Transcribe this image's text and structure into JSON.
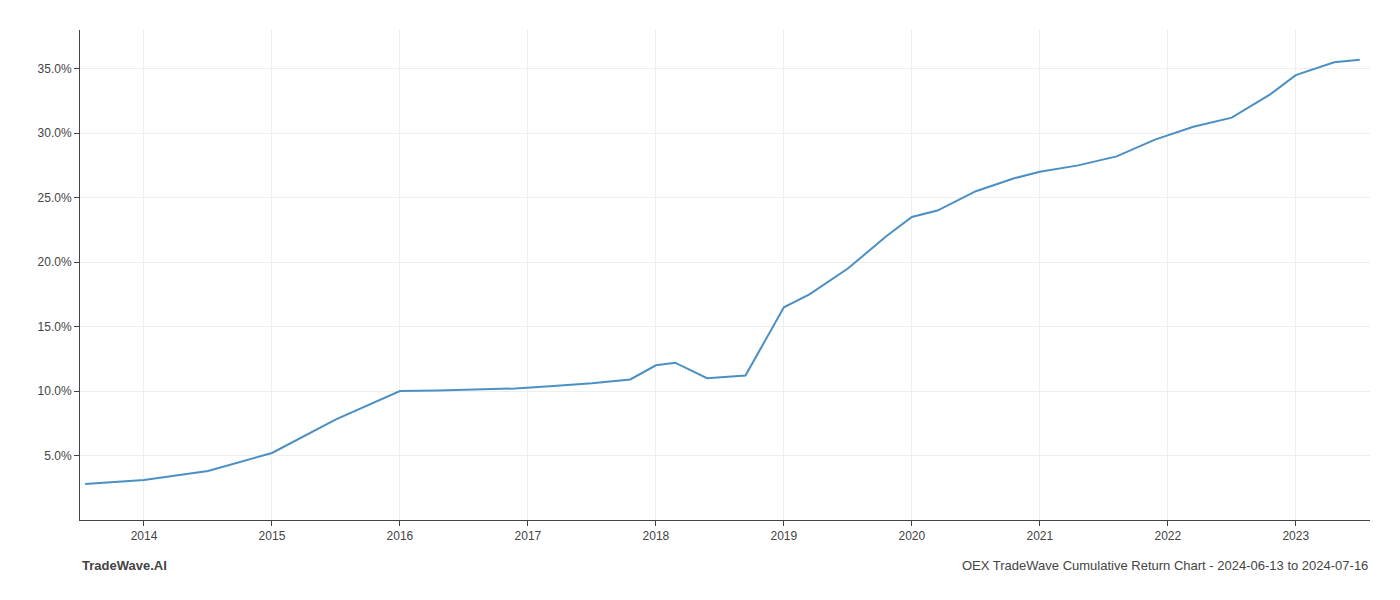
{
  "chart_data": {
    "type": "line",
    "x": [
      2013.54,
      2014.0,
      2014.5,
      2015.0,
      2015.5,
      2016.0,
      2016.3,
      2016.6,
      2016.9,
      2017.2,
      2017.5,
      2017.8,
      2018.0,
      2018.15,
      2018.4,
      2018.7,
      2019.0,
      2019.2,
      2019.5,
      2019.8,
      2020.0,
      2020.2,
      2020.5,
      2020.8,
      2021.0,
      2021.3,
      2021.6,
      2021.9,
      2022.2,
      2022.5,
      2022.8,
      2023.0,
      2023.3,
      2023.5
    ],
    "values": [
      2.8,
      3.1,
      3.8,
      5.2,
      7.8,
      10.0,
      10.05,
      10.1,
      10.2,
      10.4,
      10.6,
      10.9,
      12.0,
      12.2,
      11.0,
      11.2,
      16.5,
      17.5,
      19.5,
      22.0,
      23.5,
      24.0,
      25.5,
      26.5,
      27.0,
      27.5,
      28.2,
      29.5,
      30.5,
      31.2,
      33.0,
      34.5,
      35.5,
      35.7
    ],
    "color": "#4a90c4",
    "xlim": [
      2013.5,
      2023.58
    ],
    "ylim": [
      0,
      38
    ],
    "xticks": [
      2014,
      2015,
      2016,
      2017,
      2018,
      2019,
      2020,
      2021,
      2022,
      2023
    ],
    "yticks": [
      {
        "value": 5.0,
        "label": "5.0%"
      },
      {
        "value": 10.0,
        "label": "10.0%"
      },
      {
        "value": 15.0,
        "label": "15.0%"
      },
      {
        "value": 20.0,
        "label": "20.0%"
      },
      {
        "value": 25.0,
        "label": "25.0%"
      },
      {
        "value": 30.0,
        "label": "30.0%"
      },
      {
        "value": 35.0,
        "label": "35.0%"
      }
    ],
    "grid": true,
    "annotations": [
      "TradeWave.AI",
      "OEX TradeWave Cumulative Return Chart - 2024-06-13 to 2024-07-16"
    ]
  }
}
